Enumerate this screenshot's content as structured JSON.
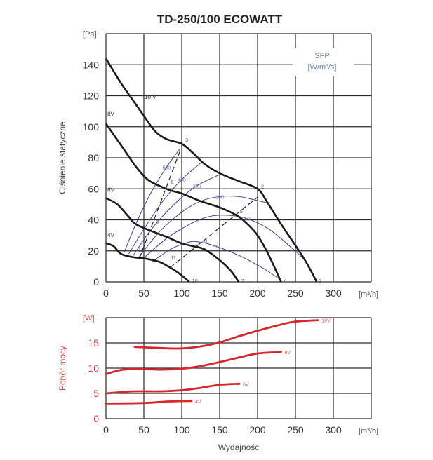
{
  "title": "TD-250/100 ECOWATT",
  "x_axis_label": "Wydajność",
  "colors": {
    "fan_curve": "#1a1a1a",
    "sfp": "#3d3d8f",
    "sfp_label": "#6d7fb0",
    "power": "#d8262b",
    "power_label": "#e06060",
    "power_axis": "#d84040"
  },
  "chart_data": [
    {
      "type": "line",
      "name": "pressure",
      "ylabel": "Ciśnienie statyczne",
      "yunit": "[Pa]",
      "xunit": "[m³/h]",
      "xlim": [
        0,
        350
      ],
      "ylim": [
        0,
        160
      ],
      "xticks": [
        "0",
        "50",
        "100",
        "150",
        "200",
        "250",
        "300"
      ],
      "yticks": [
        "0",
        "20",
        "40",
        "60",
        "80",
        "100",
        "120",
        "140"
      ],
      "grid": true,
      "sfp_title": "SFP",
      "sfp_unit": "[W/m³/s]",
      "series": [
        {
          "name": "10 V",
          "points": [
            [
              0,
              144
            ],
            [
              20,
              128
            ],
            [
              40,
              114
            ],
            [
              50,
              107
            ],
            [
              65,
              97
            ],
            [
              80,
              92
            ],
            [
              100,
              89
            ],
            [
              115,
              83
            ],
            [
              130,
              76
            ],
            [
              150,
              70
            ],
            [
              175,
              65
            ],
            [
              200,
              60
            ],
            [
              212,
              52
            ],
            [
              230,
              38
            ],
            [
              252,
              22
            ],
            [
              265,
              12
            ],
            [
              278,
              0
            ]
          ]
        },
        {
          "name": "8V",
          "points": [
            [
              0,
              102
            ],
            [
              20,
              88
            ],
            [
              40,
              74
            ],
            [
              55,
              66
            ],
            [
              70,
              62
            ],
            [
              85,
              59
            ],
            [
              100,
              57
            ],
            [
              125,
              52
            ],
            [
              150,
              48
            ],
            [
              172,
              43
            ],
            [
              185,
              38
            ],
            [
              200,
              30
            ],
            [
              215,
              17
            ],
            [
              231,
              0
            ]
          ]
        },
        {
          "name": "6V",
          "points": [
            [
              0,
              54
            ],
            [
              15,
              50
            ],
            [
              30,
              42
            ],
            [
              40,
              37
            ],
            [
              64,
              32
            ],
            [
              80,
              29
            ],
            [
              99,
              25
            ],
            [
              115,
              23
            ],
            [
              130,
              21
            ],
            [
              150,
              14
            ],
            [
              165,
              7
            ],
            [
              175,
              0
            ]
          ]
        },
        {
          "name": "4V",
          "points": [
            [
              0,
              25
            ],
            [
              10,
              23
            ],
            [
              20,
              18
            ],
            [
              35,
              16
            ],
            [
              52,
              15
            ],
            [
              70,
              13
            ],
            [
              82,
              10
            ],
            [
              95,
              6
            ],
            [
              110,
              0
            ]
          ]
        }
      ],
      "sfp_series": [
        {
          "name": "500",
          "points": [
            [
              24,
              19
            ],
            [
              40,
              38
            ],
            [
              60,
              58
            ],
            [
              80,
              74
            ],
            [
              98,
              86
            ]
          ]
        },
        {
          "name": "400",
          "points": [
            [
              30,
              18
            ],
            [
              50,
              34
            ],
            [
              75,
              52
            ],
            [
              100,
              66
            ],
            [
              126,
              77
            ]
          ]
        },
        {
          "name": "350",
          "points": [
            [
              36,
              17
            ],
            [
              60,
              34
            ],
            [
              90,
              50
            ],
            [
              120,
              62
            ],
            [
              154,
              70
            ]
          ]
        },
        {
          "name": "300",
          "points": [
            [
              42,
              15
            ],
            [
              70,
              32
            ],
            [
              100,
              45
            ],
            [
              125,
              52
            ],
            [
              150,
              55
            ],
            [
              175,
              55
            ],
            [
              195,
              53
            ],
            [
              212,
              51
            ]
          ]
        },
        {
          "name": "250",
          "points": [
            [
              49,
              15
            ],
            [
              80,
              28
            ],
            [
              110,
              37
            ],
            [
              135,
              42
            ],
            [
              159,
              43
            ],
            [
              185,
              41
            ],
            [
              215,
              34
            ],
            [
              245,
              22
            ],
            [
              265,
              13
            ]
          ]
        },
        {
          "name": "200",
          "points": [
            [
              61,
              13
            ],
            [
              85,
              21
            ],
            [
              105,
              25
            ],
            [
              119,
              26
            ],
            [
              145,
              23
            ],
            [
              180,
              16
            ],
            [
              210,
              8
            ],
            [
              231,
              1
            ]
          ]
        }
      ],
      "operating_points": [
        {
          "label": "1",
          "x": 277,
          "y": 0
        },
        {
          "label": "2",
          "x": 201,
          "y": 59
        },
        {
          "label": "3",
          "x": 101,
          "y": 89
        },
        {
          "label": "4",
          "x": 231,
          "y": 0
        },
        {
          "label": "5",
          "x": 173,
          "y": 43
        },
        {
          "label": "6",
          "x": 82,
          "y": 62
        },
        {
          "label": "7",
          "x": 175,
          "y": 0
        },
        {
          "label": "8",
          "x": 126,
          "y": 24
        },
        {
          "label": "9",
          "x": 62,
          "y": 36
        },
        {
          "label": "10",
          "x": 110,
          "y": 0
        },
        {
          "label": "11",
          "x": 82,
          "y": 13
        },
        {
          "label": "12",
          "x": 39,
          "y": 18
        }
      ],
      "dashed_lines": [
        {
          "from": [
            44,
            15
          ],
          "to": [
            99,
            86
          ]
        },
        {
          "from": [
            84,
            9
          ],
          "to": [
            201,
            55
          ]
        }
      ]
    },
    {
      "type": "line",
      "name": "power",
      "ylabel": "Pobór mocy",
      "yunit": "[W]",
      "xunit": "[m³/h]",
      "xlim": [
        0,
        350
      ],
      "ylim": [
        0,
        20
      ],
      "xticks": [
        "0",
        "50",
        "100",
        "150",
        "200",
        "250",
        "300"
      ],
      "yticks": [
        "0",
        "5",
        "10",
        "15"
      ],
      "grid": true,
      "series": [
        {
          "name": "10V",
          "points": [
            [
              38,
              14.2
            ],
            [
              70,
              14.0
            ],
            [
              98,
              13.9
            ],
            [
              125,
              14.3
            ],
            [
              150,
              15.1
            ],
            [
              175,
              16.3
            ],
            [
              200,
              17.4
            ],
            [
              225,
              18.4
            ],
            [
              249,
              19.2
            ],
            [
              280,
              19.5
            ]
          ]
        },
        {
          "name": "8V",
          "points": [
            [
              0,
              8.8
            ],
            [
              15,
              9.5
            ],
            [
              30,
              9.8
            ],
            [
              50,
              9.8
            ],
            [
              73,
              9.7
            ],
            [
              101,
              9.9
            ],
            [
              125,
              10.4
            ],
            [
              150,
              11.2
            ],
            [
              175,
              12.1
            ],
            [
              200,
              12.9
            ],
            [
              231,
              13.2
            ]
          ]
        },
        {
          "name": "6V",
          "points": [
            [
              0,
              5.0
            ],
            [
              36,
              5.4
            ],
            [
              70,
              5.4
            ],
            [
              98,
              5.6
            ],
            [
              125,
              6.1
            ],
            [
              150,
              6.7
            ],
            [
              176,
              6.9
            ]
          ]
        },
        {
          "name": "4V",
          "points": [
            [
              0,
              3.0
            ],
            [
              51,
              3.1
            ],
            [
              82,
              3.4
            ],
            [
              113,
              3.5
            ]
          ]
        }
      ]
    }
  ]
}
